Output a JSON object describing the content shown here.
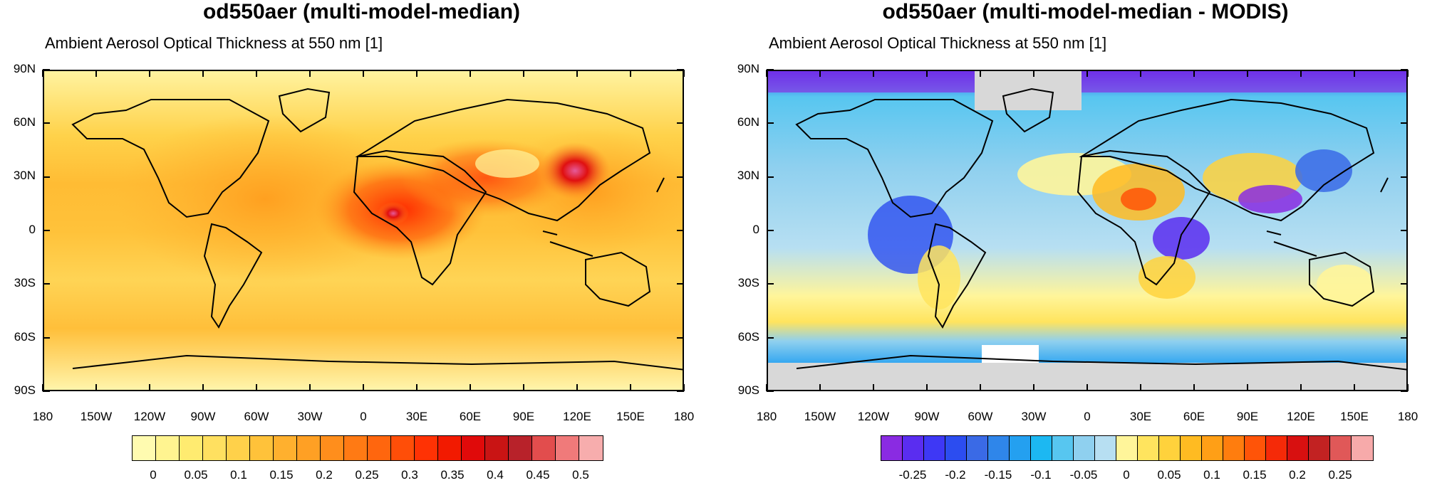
{
  "panels": [
    {
      "title": "od550aer (multi-model-median)",
      "subtitle": "Ambient Aerosol Optical Thickness at 550 nm [1]",
      "colorbar": {
        "colors": [
          "#fffbb0",
          "#fff490",
          "#ffeb70",
          "#ffe060",
          "#ffd14a",
          "#ffc23a",
          "#ffb02e",
          "#ffa024",
          "#ff8e1c",
          "#ff7a14",
          "#ff660e",
          "#ff4e08",
          "#ff3204",
          "#f21a00",
          "#e00a0a",
          "#c91414",
          "#b8222a",
          "#e24d4d",
          "#f07a7a",
          "#f7adad"
        ],
        "labels": [
          "0",
          "0.05",
          "0.1",
          "0.15",
          "0.2",
          "0.25",
          "0.3",
          "0.35",
          "0.4",
          "0.45",
          "0.5"
        ]
      }
    },
    {
      "title": "od550aer (multi-model-median - MODIS)",
      "subtitle": "Ambient Aerosol Optical Thickness at 550 nm [1]",
      "colorbar": {
        "colors": [
          "#8a2be2",
          "#5a2df0",
          "#3e38f5",
          "#2c4df0",
          "#3a6ae6",
          "#2f86ea",
          "#24a0f0",
          "#1cb8f2",
          "#57c6f0",
          "#8fd0ef",
          "#b7dff2",
          "#fff59a",
          "#ffe45e",
          "#ffd23c",
          "#ffbb22",
          "#ff9f16",
          "#ff7d0e",
          "#ff5408",
          "#f52a08",
          "#d81010",
          "#c22222",
          "#e05858",
          "#f7aaaa"
        ],
        "labels": [
          "-0.25",
          "-0.2",
          "-0.15",
          "-0.1",
          "-0.05",
          "0",
          "0.05",
          "0.1",
          "0.15",
          "0.2",
          "0.25"
        ]
      }
    }
  ],
  "axes": {
    "lat_labels": [
      "90N",
      "60N",
      "30N",
      "0",
      "30S",
      "60S",
      "90S"
    ],
    "lon_labels": [
      "180",
      "150W",
      "120W",
      "90W",
      "60W",
      "30W",
      "0",
      "30E",
      "60E",
      "90E",
      "120E",
      "150E",
      "180"
    ]
  }
}
